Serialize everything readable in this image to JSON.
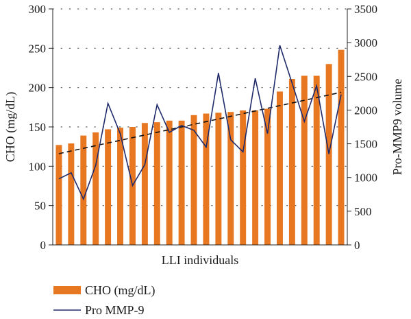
{
  "chart_data": {
    "type": "bar+line",
    "xlabel": "LLI individuals",
    "ylabel_left": "CHO (mg/dL)",
    "ylabel_right": "Pro-MMP9 volume",
    "ylim_left": [
      0,
      300
    ],
    "yticks_left": [
      0,
      50,
      100,
      150,
      200,
      250,
      300
    ],
    "ylim_right": [
      0,
      3500
    ],
    "yticks_right": [
      0,
      500,
      1000,
      1500,
      2000,
      2500,
      3000,
      3500
    ],
    "grid": "dotted horizontal",
    "legend_position": "bottom-left",
    "series": [
      {
        "name": "CHO (mg/dL)",
        "kind": "bar",
        "axis": "left",
        "color": "#E87722",
        "values": [
          127,
          129,
          139,
          143,
          147,
          149,
          150,
          155,
          156,
          158,
          158,
          165,
          167,
          168,
          169,
          171,
          171,
          173,
          195,
          211,
          215,
          215,
          230,
          248
        ]
      },
      {
        "name": "Pro MMP-9",
        "kind": "line",
        "axis": "right",
        "color": "#1F2A6B",
        "values": [
          980,
          1070,
          680,
          1180,
          2100,
          1650,
          880,
          1190,
          2080,
          1670,
          1770,
          1700,
          1450,
          2550,
          1560,
          1380,
          2470,
          1650,
          2960,
          2400,
          1830,
          2360,
          1350,
          2230
        ]
      }
    ],
    "trendline": {
      "series": "CHO (mg/dL)",
      "style": "dashed",
      "color": "#111111",
      "from": 116,
      "to": 194
    }
  }
}
